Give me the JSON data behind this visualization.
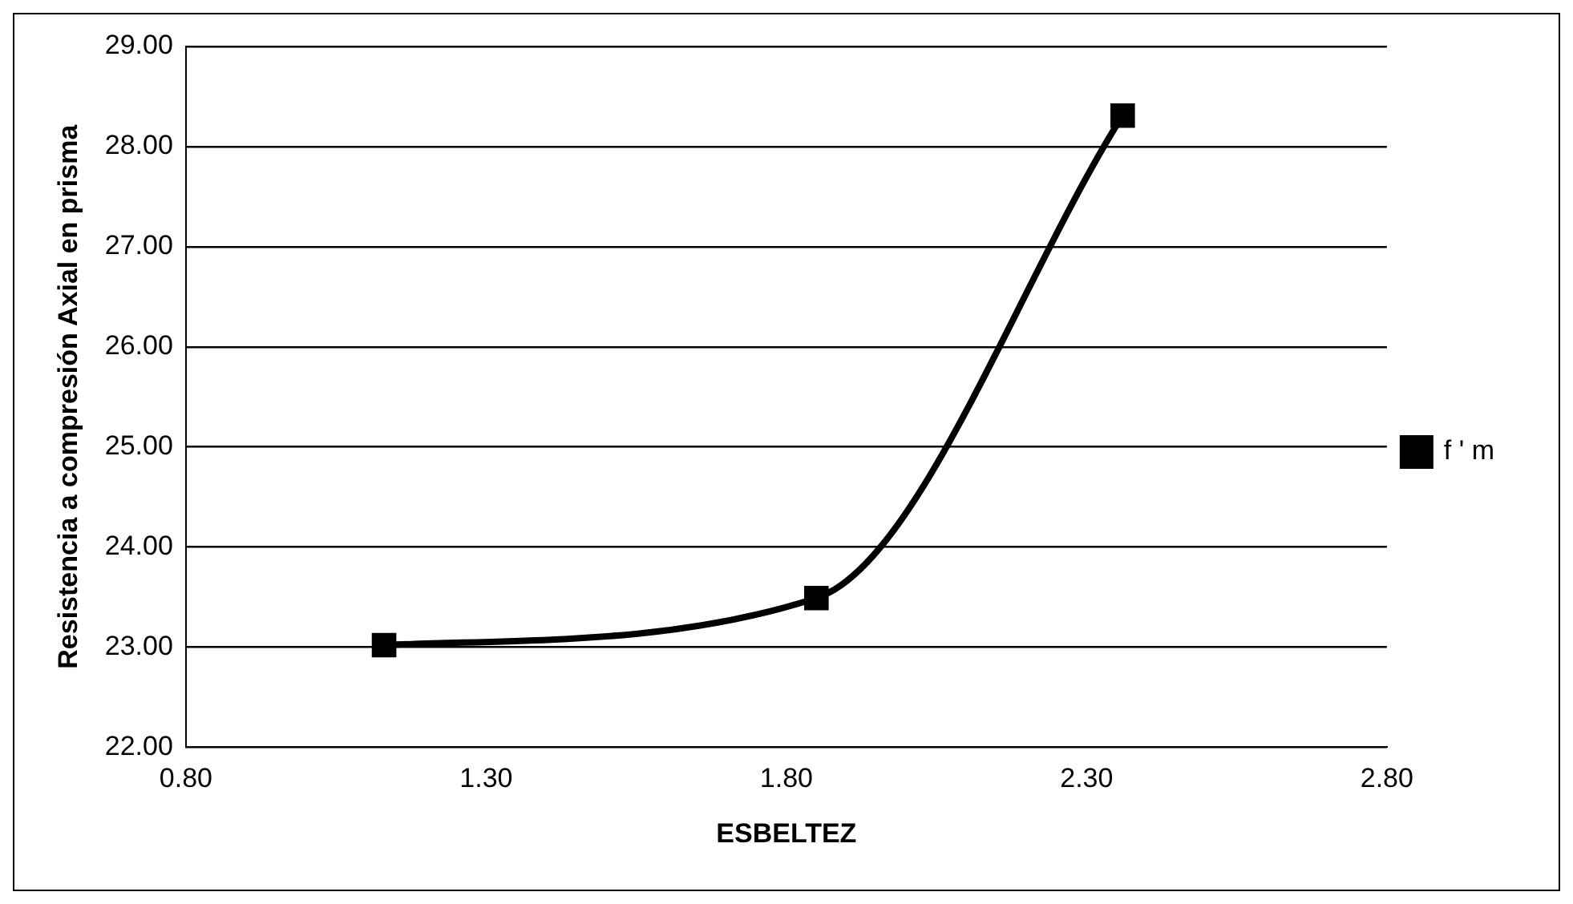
{
  "chart_data": {
    "type": "line",
    "xlabel": "ESBELTEZ",
    "ylabel": "Resistencia a compresión Axial en prisma",
    "x": [
      1.13,
      1.85,
      2.36
    ],
    "series": [
      {
        "name": "f ' m",
        "color": "#000000",
        "values": [
          23.02,
          23.49,
          28.31
        ]
      }
    ],
    "xlim": [
      0.8,
      2.8
    ],
    "xticks": [
      {
        "value": 0.8,
        "label": "0.80"
      },
      {
        "value": 1.3,
        "label": "1.30"
      },
      {
        "value": 1.8,
        "label": "1.80"
      },
      {
        "value": 2.3,
        "label": "2.30"
      },
      {
        "value": 2.8,
        "label": "2.80"
      }
    ],
    "ylim": [
      22,
      29
    ],
    "yticks": [
      {
        "value": 22,
        "label": "22.00"
      },
      {
        "value": 23,
        "label": "23.00"
      },
      {
        "value": 24,
        "label": "24.00"
      },
      {
        "value": 25,
        "label": "25.00"
      },
      {
        "value": 26,
        "label": "26.00"
      },
      {
        "value": 27,
        "label": "27.00"
      },
      {
        "value": 28,
        "label": "28.00"
      },
      {
        "value": 29,
        "label": "29.00"
      }
    ],
    "grid": "y",
    "legend": "right",
    "marker": "square",
    "line_style": "solid"
  }
}
